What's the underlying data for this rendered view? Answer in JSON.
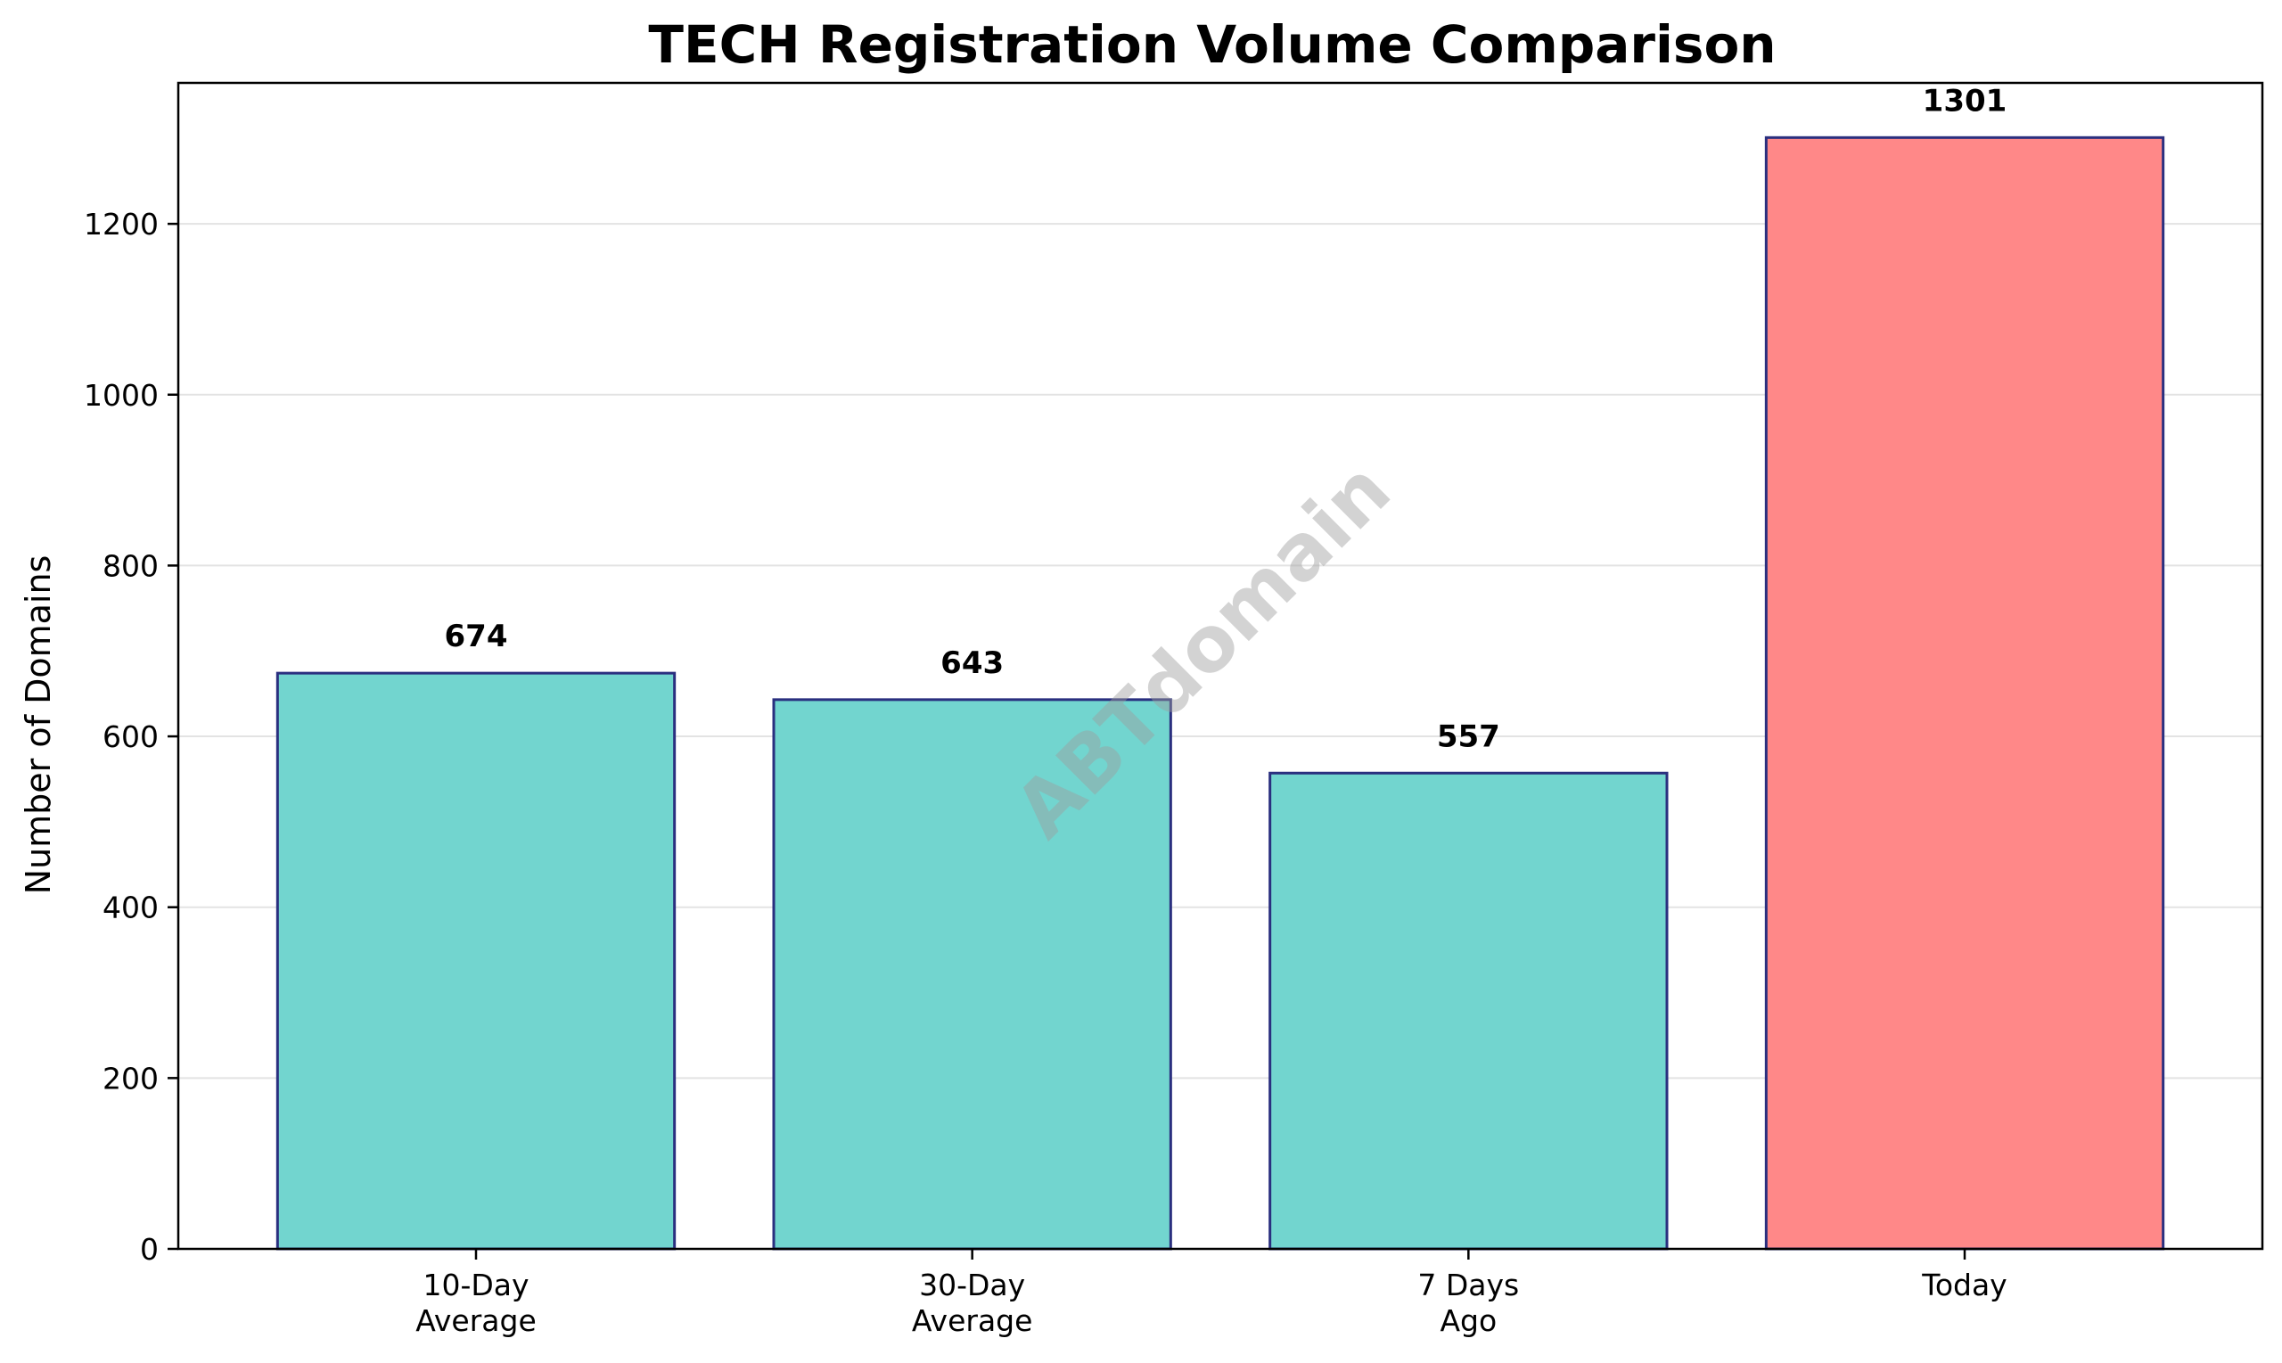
{
  "chart_data": {
    "type": "bar",
    "title": "TECH Registration Volume Comparison",
    "xlabel": "",
    "ylabel": "Number of Domains",
    "categories": [
      [
        "10-Day",
        "Average"
      ],
      [
        "30-Day",
        "Average"
      ],
      [
        "7 Days",
        "Ago"
      ],
      [
        "Today"
      ]
    ],
    "values": [
      674,
      643,
      557,
      1301
    ],
    "value_labels": [
      "674",
      "643",
      "557",
      "1301"
    ],
    "ylim": [
      0,
      1365
    ],
    "yticks": [
      0,
      200,
      400,
      600,
      800,
      1000,
      1200
    ],
    "grid": "y",
    "colors": {
      "bar": "#72d5cf",
      "highlight": "#ff8888",
      "edge": "#2a2f7f"
    },
    "watermark": "ABTdomain"
  }
}
